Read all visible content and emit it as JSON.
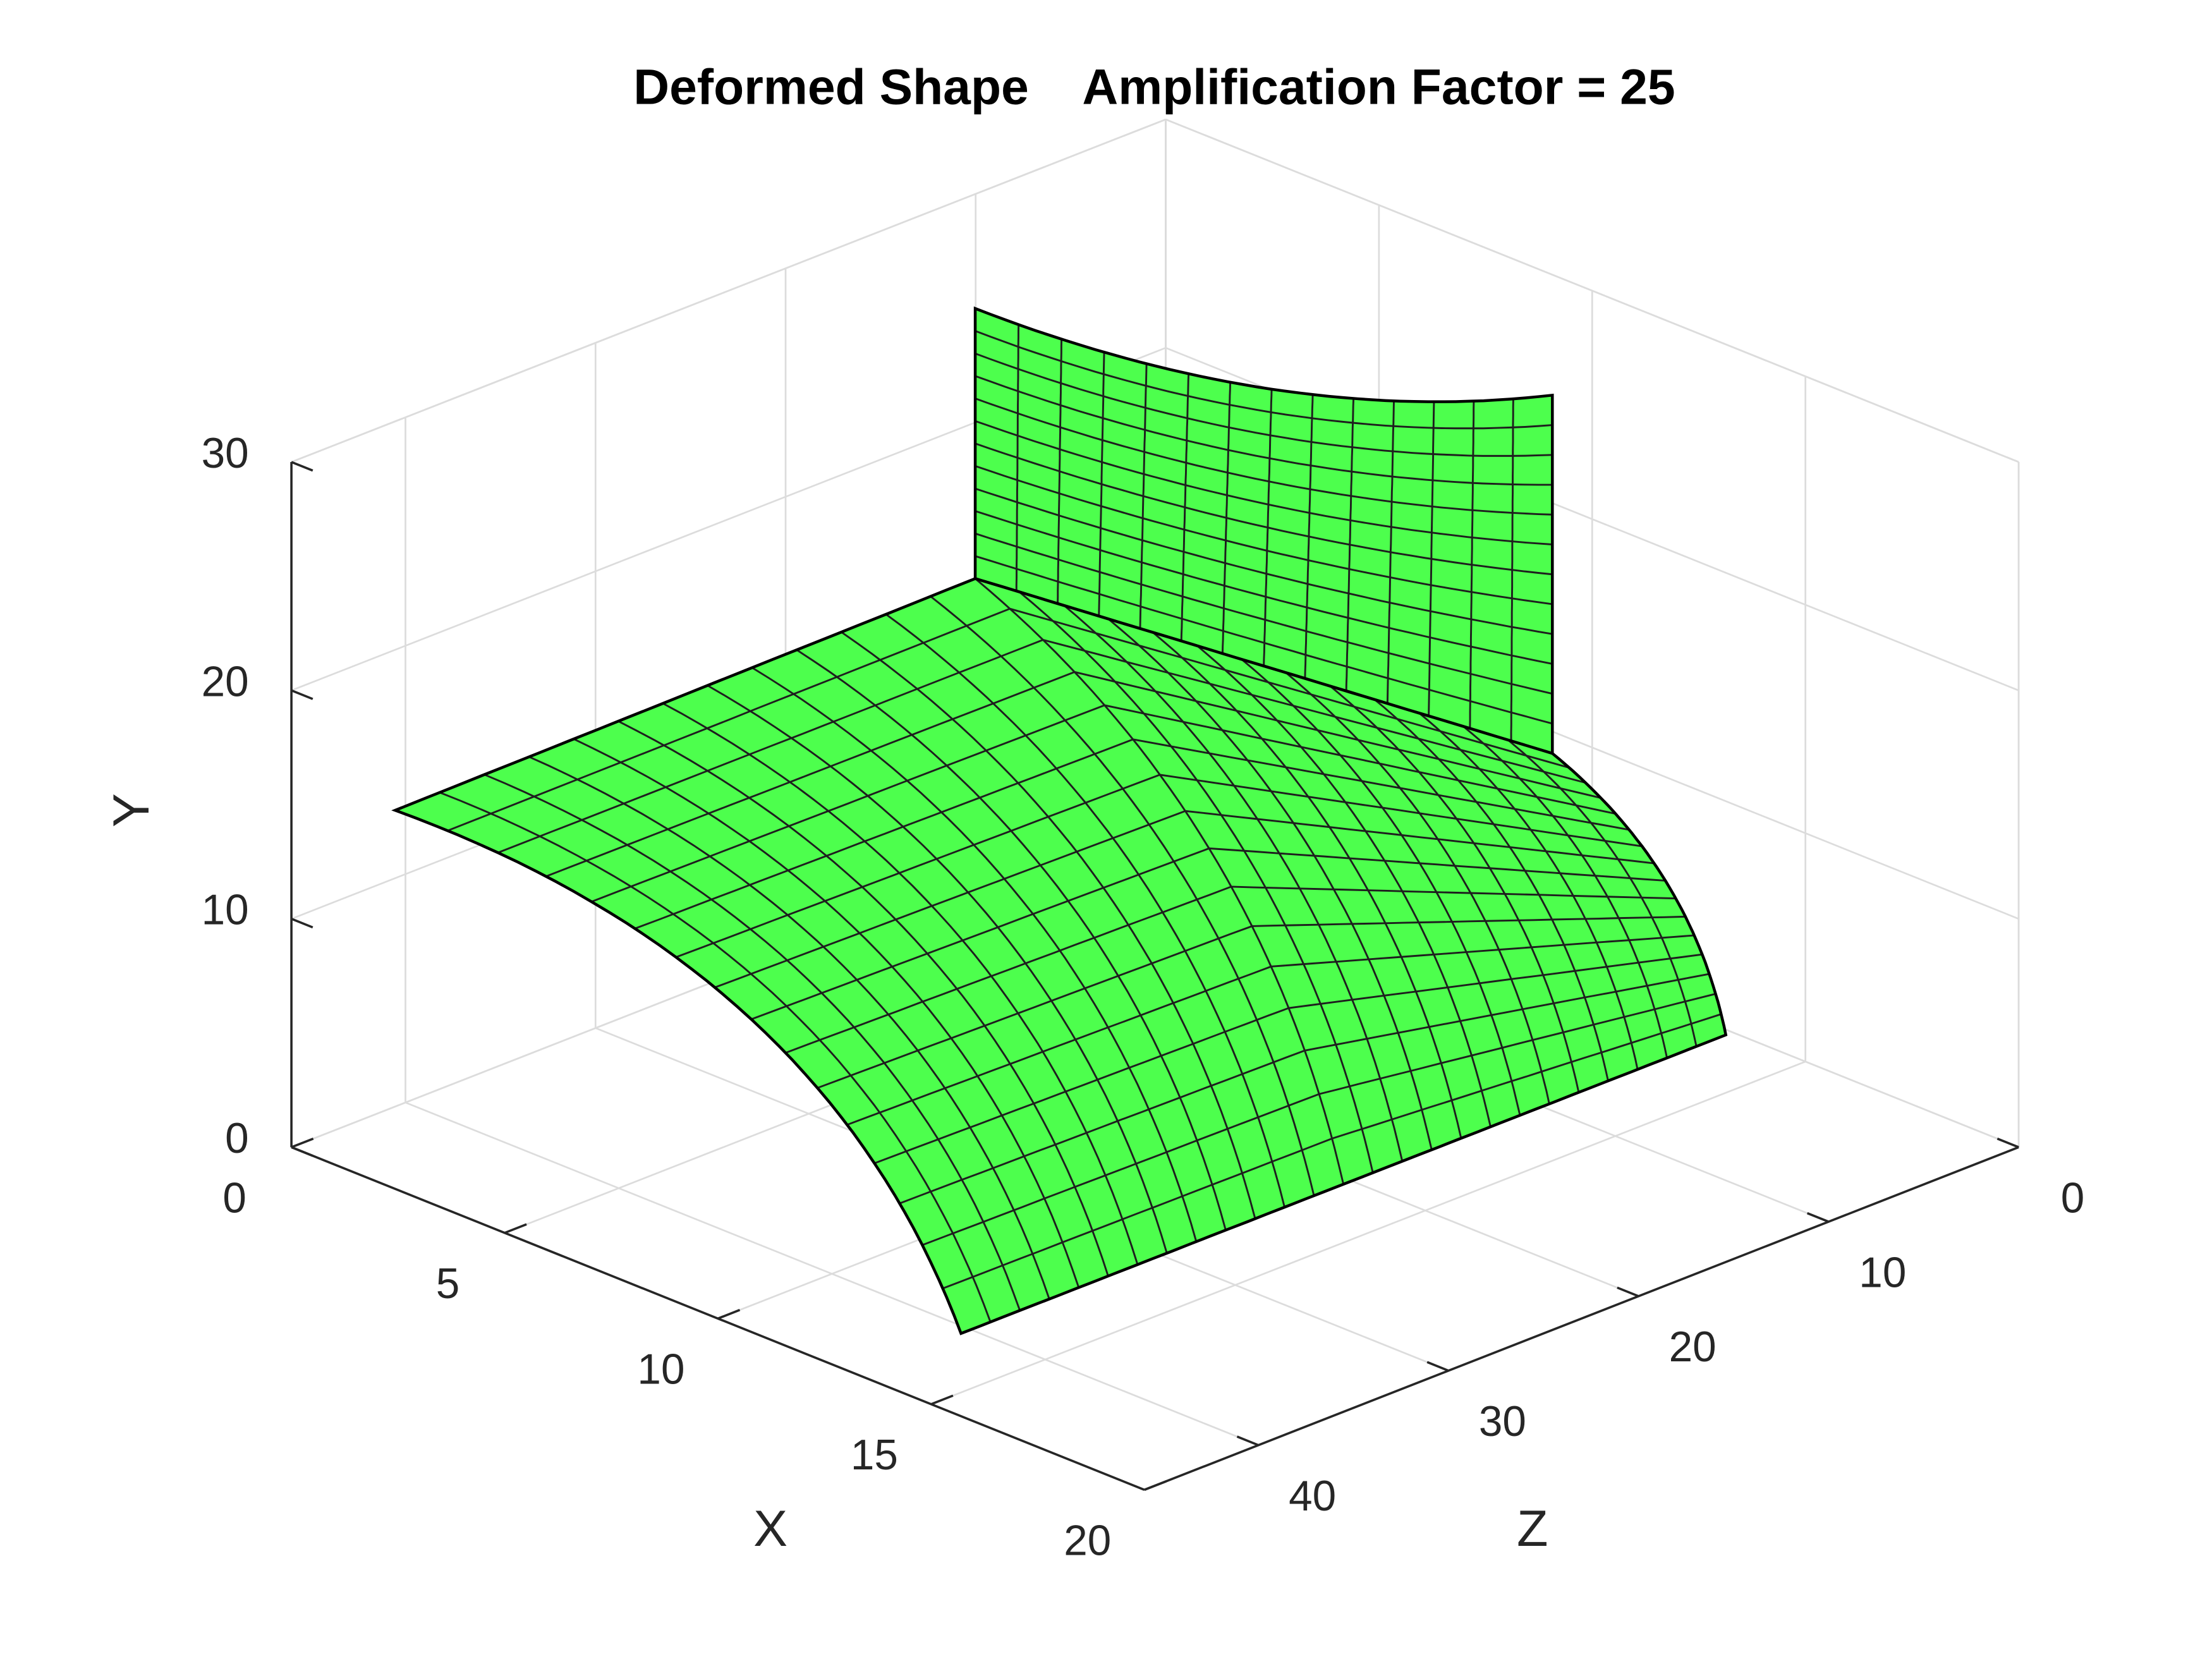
{
  "chart_data": {
    "type": "surface3d",
    "title": "Deformed Shape    Amplification Factor = 25",
    "xlabel": "X",
    "ylabel": "Y",
    "zlabel": "Z",
    "xlim": [
      0,
      20
    ],
    "xticks": [
      0,
      5,
      10,
      15,
      20
    ],
    "ylim": [
      0,
      30
    ],
    "yticks": [
      0,
      10,
      20,
      30
    ],
    "zlim": [
      0,
      46
    ],
    "zticks": [
      0,
      10,
      20,
      30,
      40
    ],
    "color": "#4dff4d",
    "grid": true
  }
}
